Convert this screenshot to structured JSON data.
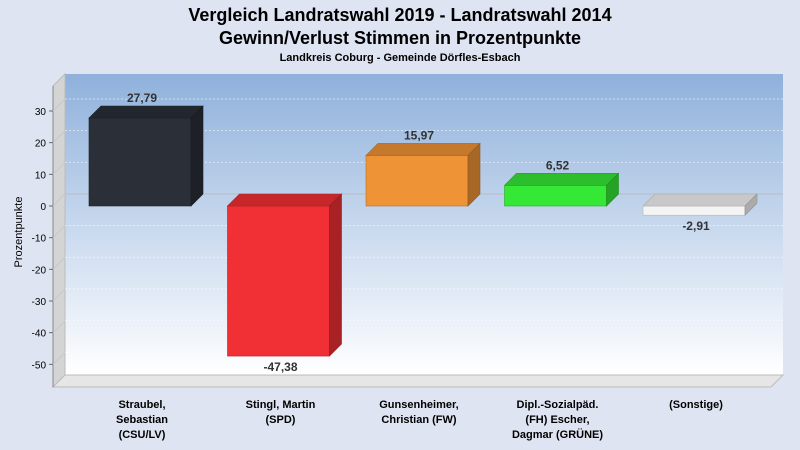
{
  "header": {
    "title_line1": "Vergleich Landratswahl 2019 - Landratswahl 2014",
    "title_line2": "Gewinn/Verlust Stimmen in Prozentpunkte",
    "subtitle": "Landkreis Coburg - Gemeinde Dörfles-Esbach"
  },
  "chart_data": {
    "type": "bar",
    "title": "Vergleich Landratswahl 2019 - Landratswahl 2014 / Gewinn/Verlust Stimmen in Prozentpunkte",
    "subtitle": "Landkreis Coburg - Gemeinde Dörfles-Esbach",
    "ylabel": "Prozentpunkte",
    "xlabel": "",
    "ylim": [
      -55,
      37
    ],
    "yticks": [
      30,
      20,
      10,
      0,
      -10,
      -20,
      -30,
      -40,
      -50
    ],
    "grid": true,
    "categories": [
      [
        "Straubel,",
        "Sebastian",
        "(CSU/LV)"
      ],
      [
        "Stingl, Martin",
        "(SPD)"
      ],
      [
        "Gunsenheimer,",
        "Christian (FW)"
      ],
      [
        "Dipl.-Sozialpäd.",
        "(FH) Escher,",
        "Dagmar (GRÜNE)"
      ],
      [
        "(Sonstige)"
      ]
    ],
    "values": [
      27.79,
      -47.38,
      15.97,
      6.52,
      -2.91
    ],
    "value_labels": [
      "27,79",
      "-47,38",
      "15,97",
      "6,52",
      "-2,91"
    ],
    "colors": [
      "#2a2f38",
      "#f03035",
      "#ef9436",
      "#36e836",
      "#f4f4f4"
    ]
  }
}
